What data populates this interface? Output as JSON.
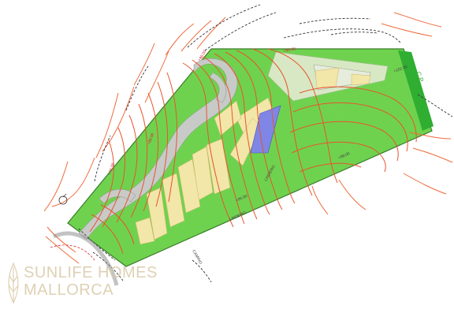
{
  "plan": {
    "colors": {
      "plot": "#6fd24f",
      "plot_border": "#3a7d2a",
      "east_strip": "#2fae32",
      "path_gray": "#c8cac8",
      "terrace_yellow": "#f2e6a8",
      "pool_blue": "#7f86e6",
      "house_area": "#d8e8c4",
      "contour": "#e8542c"
    },
    "labels": {
      "east_tag": "C.P",
      "elev_1": "+102.00",
      "elev_2": "+98.00",
      "elev_3": "+95.00",
      "elev_4": "+90.00",
      "elev_5": "+86.00",
      "elev_6": "+80.00",
      "elev_7": "+76.00",
      "boundary_a": "LINDERO",
      "boundary_b": "LINDERO",
      "road": "CAMINO"
    }
  },
  "watermark": {
    "line1": "SUNLIFE HOMES",
    "line2": "MALLORCA",
    "icon": "leaf-icon"
  }
}
